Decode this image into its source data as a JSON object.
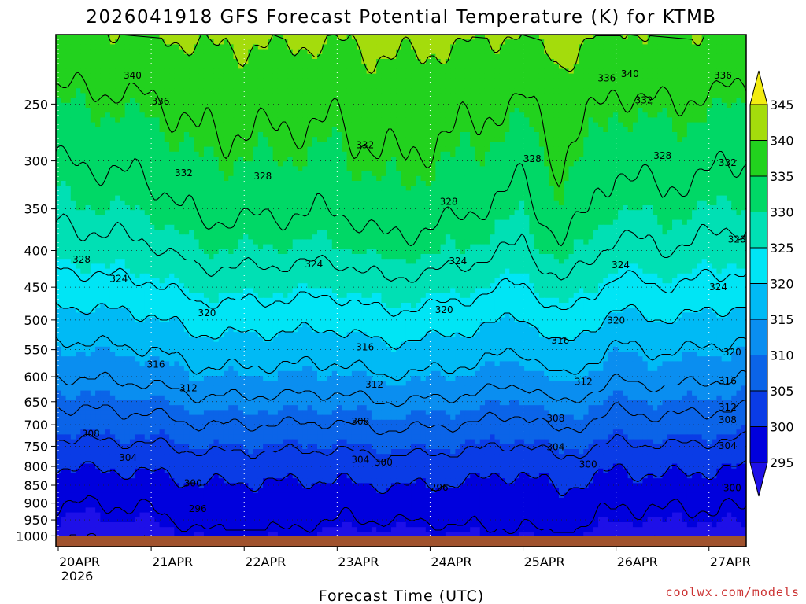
{
  "chart_data": {
    "type": "heatmap",
    "title": "2026041918 GFS Forecast Potential Temperature (K) for KTMB",
    "xlabel": "Forecast Time (UTC)",
    "ylabel": "",
    "credit": "coolwx.com/models",
    "x_ticks": [
      "20APR",
      "21APR",
      "22APR",
      "23APR",
      "24APR",
      "25APR",
      "26APR",
      "27APR"
    ],
    "x_year_label": "2026",
    "x_days_range": [
      0,
      7.4
    ],
    "y_ticks": [
      250,
      300,
      350,
      400,
      450,
      500,
      550,
      600,
      650,
      700,
      750,
      800,
      850,
      900,
      950,
      1000
    ],
    "ylim": [
      200,
      1035
    ],
    "y_scale": "log-pressure (hPa), inverted",
    "colorbar": {
      "levels": [
        295,
        300,
        305,
        310,
        315,
        320,
        325,
        330,
        335,
        340,
        345
      ],
      "labels": [
        "295",
        "300",
        "305",
        "310",
        "315",
        "320",
        "325",
        "330",
        "335",
        "340",
        "345"
      ],
      "colors": [
        "#1e10e8",
        "#0000dd",
        "#0a3ce6",
        "#0b64e8",
        "#0a8ef0",
        "#00baf5",
        "#00e5f5",
        "#00e0b4",
        "#00d866",
        "#22d21e",
        "#a4dc0c",
        "#f2ec10"
      ]
    },
    "contour_interval": 4,
    "contour_labels": [
      "296",
      "300",
      "304",
      "308",
      "312",
      "316",
      "320",
      "324",
      "328",
      "332",
      "336",
      "340"
    ],
    "profile": [
      {
        "p": 1000,
        "theta": 294
      },
      {
        "p": 950,
        "theta": 296
      },
      {
        "p": 900,
        "theta": 297
      },
      {
        "p": 850,
        "theta": 299
      },
      {
        "p": 800,
        "theta": 301
      },
      {
        "p": 750,
        "theta": 304
      },
      {
        "p": 700,
        "theta": 307
      },
      {
        "p": 650,
        "theta": 310
      },
      {
        "p": 600,
        "theta": 313.5
      },
      {
        "p": 550,
        "theta": 316.5
      },
      {
        "p": 500,
        "theta": 320
      },
      {
        "p": 450,
        "theta": 324
      },
      {
        "p": 400,
        "theta": 328
      },
      {
        "p": 350,
        "theta": 331
      },
      {
        "p": 300,
        "theta": 333.5
      },
      {
        "p": 250,
        "theta": 336
      },
      {
        "p": 200,
        "theta": 340
      }
    ],
    "temporal_warm_anomaly": [
      {
        "day": 0,
        "dtheta": -1.5
      },
      {
        "day": 1,
        "dtheta": -0.5
      },
      {
        "day": 1.5,
        "dtheta": 1.5
      },
      {
        "day": 2,
        "dtheta": 1.5
      },
      {
        "day": 3,
        "dtheta": 1
      },
      {
        "day": 3.5,
        "dtheta": 2.5
      },
      {
        "day": 4,
        "dtheta": 2
      },
      {
        "day": 4.5,
        "dtheta": 1
      },
      {
        "day": 5,
        "dtheta": -0.5
      },
      {
        "day": 5.4,
        "dtheta": 3
      },
      {
        "day": 6,
        "dtheta": -1
      },
      {
        "day": 6.5,
        "dtheta": 0
      },
      {
        "day": 7.4,
        "dtheta": -1.5
      }
    ],
    "contour_label_positions": [
      {
        "text": "340",
        "day": 0.8,
        "p": 228
      },
      {
        "text": "336",
        "day": 1.1,
        "p": 248
      },
      {
        "text": "332",
        "day": 1.35,
        "p": 312
      },
      {
        "text": "328",
        "day": 0.25,
        "p": 412
      },
      {
        "text": "324",
        "day": 0.65,
        "p": 438
      },
      {
        "text": "320",
        "day": 1.6,
        "p": 489
      },
      {
        "text": "316",
        "day": 1.05,
        "p": 577
      },
      {
        "text": "312",
        "day": 1.4,
        "p": 622
      },
      {
        "text": "308",
        "day": 0.35,
        "p": 720
      },
      {
        "text": "304",
        "day": 0.75,
        "p": 778
      },
      {
        "text": "300",
        "day": 1.45,
        "p": 845
      },
      {
        "text": "296",
        "day": 1.5,
        "p": 917
      },
      {
        "text": "328",
        "day": 2.2,
        "p": 315
      },
      {
        "text": "324",
        "day": 2.75,
        "p": 418
      },
      {
        "text": "316",
        "day": 3.3,
        "p": 546
      },
      {
        "text": "312",
        "day": 3.4,
        "p": 615
      },
      {
        "text": "308",
        "day": 3.25,
        "p": 693
      },
      {
        "text": "304",
        "day": 3.25,
        "p": 783
      },
      {
        "text": "300",
        "day": 3.5,
        "p": 790
      },
      {
        "text": "296",
        "day": 4.1,
        "p": 856
      },
      {
        "text": "332",
        "day": 3.3,
        "p": 285
      },
      {
        "text": "320",
        "day": 4.15,
        "p": 484
      },
      {
        "text": "324",
        "day": 4.3,
        "p": 414
      },
      {
        "text": "328",
        "day": 4.2,
        "p": 342
      },
      {
        "text": "328",
        "day": 5.1,
        "p": 298
      },
      {
        "text": "316",
        "day": 5.4,
        "p": 534
      },
      {
        "text": "312",
        "day": 5.65,
        "p": 610
      },
      {
        "text": "308",
        "day": 5.35,
        "p": 686
      },
      {
        "text": "304",
        "day": 5.35,
        "p": 752
      },
      {
        "text": "300",
        "day": 5.7,
        "p": 795
      },
      {
        "text": "336",
        "day": 5.9,
        "p": 230
      },
      {
        "text": "340",
        "day": 6.15,
        "p": 227
      },
      {
        "text": "332",
        "day": 6.3,
        "p": 247
      },
      {
        "text": "328",
        "day": 6.5,
        "p": 295
      },
      {
        "text": "324",
        "day": 6.05,
        "p": 419
      },
      {
        "text": "320",
        "day": 6.0,
        "p": 501
      },
      {
        "text": "336",
        "day": 7.15,
        "p": 228
      },
      {
        "text": "332",
        "day": 7.2,
        "p": 302
      },
      {
        "text": "328",
        "day": 7.3,
        "p": 386
      },
      {
        "text": "324",
        "day": 7.1,
        "p": 450
      },
      {
        "text": "320",
        "day": 7.25,
        "p": 555
      },
      {
        "text": "316",
        "day": 7.2,
        "p": 608
      },
      {
        "text": "312",
        "day": 7.2,
        "p": 662
      },
      {
        "text": "308",
        "day": 7.2,
        "p": 689
      },
      {
        "text": "304",
        "day": 7.2,
        "p": 749
      },
      {
        "text": "300",
        "day": 7.25,
        "p": 858
      }
    ]
  }
}
